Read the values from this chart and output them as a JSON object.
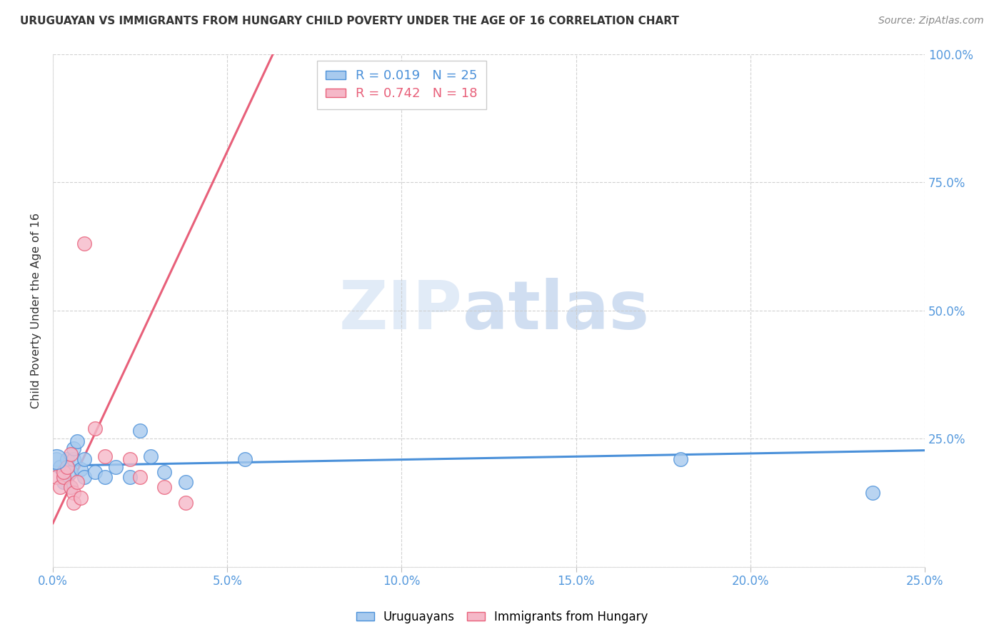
{
  "title": "URUGUAYAN VS IMMIGRANTS FROM HUNGARY CHILD POVERTY UNDER THE AGE OF 16 CORRELATION CHART",
  "source": "Source: ZipAtlas.com",
  "ylabel": "Child Poverty Under the Age of 16",
  "xlim": [
    0.0,
    0.25
  ],
  "ylim": [
    0.0,
    1.0
  ],
  "xtick_vals": [
    0.0,
    0.05,
    0.1,
    0.15,
    0.2,
    0.25
  ],
  "xtick_labels": [
    "0.0%",
    "5.0%",
    "10.0%",
    "15.0%",
    "20.0%",
    "25.0%"
  ],
  "ytick_vals": [
    0.0,
    0.25,
    0.5,
    0.75,
    1.0
  ],
  "right_ytick_labels": [
    "100.0%",
    "75.0%",
    "50.0%",
    "25.0%",
    ""
  ],
  "watermark_zip": "ZIP",
  "watermark_atlas": "atlas",
  "legend_line1": "R = 0.019   N = 25",
  "legend_line2": "R = 0.742   N = 18",
  "legend_label_blue": "Uruguayans",
  "legend_label_pink": "Immigrants from Hungary",
  "blue_scatter_x": [
    0.001,
    0.002,
    0.003,
    0.003,
    0.004,
    0.004,
    0.005,
    0.005,
    0.006,
    0.006,
    0.007,
    0.008,
    0.009,
    0.009,
    0.012,
    0.015,
    0.018,
    0.022,
    0.025,
    0.028,
    0.032,
    0.038,
    0.055,
    0.18,
    0.235
  ],
  "blue_scatter_y": [
    0.21,
    0.195,
    0.175,
    0.165,
    0.195,
    0.21,
    0.185,
    0.155,
    0.21,
    0.23,
    0.245,
    0.19,
    0.175,
    0.21,
    0.185,
    0.175,
    0.195,
    0.175,
    0.265,
    0.215,
    0.185,
    0.165,
    0.21,
    0.21,
    0.145
  ],
  "pink_scatter_x": [
    0.001,
    0.002,
    0.003,
    0.003,
    0.004,
    0.005,
    0.005,
    0.006,
    0.006,
    0.007,
    0.008,
    0.009,
    0.012,
    0.015,
    0.022,
    0.025,
    0.032,
    0.038
  ],
  "pink_scatter_y": [
    0.175,
    0.155,
    0.175,
    0.185,
    0.195,
    0.22,
    0.155,
    0.145,
    0.125,
    0.165,
    0.135,
    0.63,
    0.27,
    0.215,
    0.21,
    0.175,
    0.155,
    0.125
  ],
  "blue_color": "#A8CAEE",
  "pink_color": "#F5B8C8",
  "blue_line_color": "#4A90D9",
  "pink_line_color": "#E8607A",
  "grid_color": "#CCCCCC",
  "background_color": "#FFFFFF",
  "title_color": "#333333",
  "axis_label_color": "#5599DD",
  "marker_size": 200,
  "marker_size_large": 400,
  "pink_regression_slope": 14.5,
  "pink_regression_intercept": 0.085,
  "blue_regression_slope": 0.12,
  "blue_regression_intercept": 0.197
}
